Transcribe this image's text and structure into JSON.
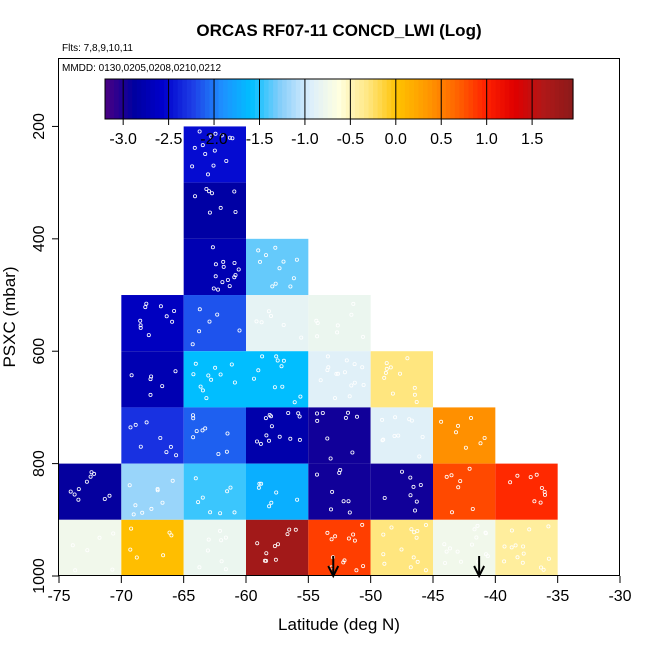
{
  "chart_data": {
    "type": "heatmap",
    "title": "ORCAS RF07-11 CONCD_LWI (Log)",
    "subtitle_flights": "Flts: 7,8,9,10,11",
    "subtitle_dates": "MMDD: 0130,0205,0208,0210,0212",
    "xlabel": "Latitude (deg N)",
    "ylabel": "PSXC (mbar)",
    "xlim": [
      -75,
      -30
    ],
    "ylim": [
      1000,
      80
    ],
    "x_ticks": [
      -75,
      -70,
      -65,
      -60,
      -55,
      -50,
      -45,
      -40,
      -35,
      -30
    ],
    "y_ticks": [
      200,
      400,
      600,
      800,
      1000
    ],
    "colorbar": {
      "range": [
        -3.2,
        1.95
      ],
      "ticks": [
        -3.0,
        -2.5,
        -2.0,
        -1.5,
        -1.0,
        -0.5,
        0.0,
        0.5,
        1.0,
        1.5
      ],
      "tick_labels": [
        "-3.0",
        "-2.5",
        "-2.0",
        "-1.5",
        "-1.0",
        "-0.5",
        "0.0",
        "0.5",
        "1.0",
        "1.5"
      ],
      "colors": [
        "#4b0082",
        "#0000a0",
        "#0000cd",
        "#1e3ee6",
        "#1e90ff",
        "#00bfff",
        "#87cefa",
        "#dbeefc",
        "#ffffe0",
        "#ffe680",
        "#ffc200",
        "#ff9900",
        "#ff6600",
        "#ff2200",
        "#e00000",
        "#b01818",
        "#8b1a1a"
      ]
    },
    "cells": [
      {
        "lat": [
          -75,
          -70
        ],
        "p": [
          800,
          900
        ],
        "value": -2.9
      },
      {
        "lat": [
          -75,
          -70
        ],
        "p": [
          900,
          1000
        ],
        "value": -0.75
      },
      {
        "lat": [
          -70,
          -65
        ],
        "p": [
          500,
          600
        ],
        "value": -2.65
      },
      {
        "lat": [
          -70,
          -65
        ],
        "p": [
          600,
          700
        ],
        "value": -2.75
      },
      {
        "lat": [
          -70,
          -65
        ],
        "p": [
          700,
          800
        ],
        "value": -2.3
      },
      {
        "lat": [
          -70,
          -65
        ],
        "p": [
          800,
          900
        ],
        "value": -1.2
      },
      {
        "lat": [
          -70,
          -65
        ],
        "p": [
          900,
          1000
        ],
        "value": 0.05
      },
      {
        "lat": [
          -65,
          -60
        ],
        "p": [
          200,
          300
        ],
        "value": -2.5
      },
      {
        "lat": [
          -65,
          -60
        ],
        "p": [
          300,
          400
        ],
        "value": -2.85
      },
      {
        "lat": [
          -65,
          -60
        ],
        "p": [
          400,
          500
        ],
        "value": -2.75
      },
      {
        "lat": [
          -65,
          -60
        ],
        "p": [
          500,
          600
        ],
        "value": -2.15
      },
      {
        "lat": [
          -65,
          -60
        ],
        "p": [
          600,
          700
        ],
        "value": -1.6
      },
      {
        "lat": [
          -65,
          -60
        ],
        "p": [
          700,
          800
        ],
        "value": -2.1
      },
      {
        "lat": [
          -65,
          -60
        ],
        "p": [
          800,
          900
        ],
        "value": -1.45
      },
      {
        "lat": [
          -65,
          -60
        ],
        "p": [
          900,
          1000
        ],
        "value": -0.8
      },
      {
        "lat": [
          -60,
          -55
        ],
        "p": [
          400,
          500
        ],
        "value": -1.35
      },
      {
        "lat": [
          -60,
          -55
        ],
        "p": [
          500,
          600
        ],
        "value": -0.85
      },
      {
        "lat": [
          -60,
          -55
        ],
        "p": [
          600,
          700
        ],
        "value": -1.6
      },
      {
        "lat": [
          -60,
          -55
        ],
        "p": [
          700,
          800
        ],
        "value": -2.8
      },
      {
        "lat": [
          -60,
          -55
        ],
        "p": [
          800,
          900
        ],
        "value": -1.7
      },
      {
        "lat": [
          -60,
          -55
        ],
        "p": [
          900,
          1000
        ],
        "value": 1.75
      },
      {
        "lat": [
          -55,
          -50
        ],
        "p": [
          500,
          600
        ],
        "value": -0.8
      },
      {
        "lat": [
          -55,
          -50
        ],
        "p": [
          600,
          700
        ],
        "value": -0.9
      },
      {
        "lat": [
          -55,
          -50
        ],
        "p": [
          700,
          800
        ],
        "value": -2.95
      },
      {
        "lat": [
          -55,
          -50
        ],
        "p": [
          800,
          900
        ],
        "value": -2.95
      },
      {
        "lat": [
          -55,
          -50
        ],
        "p": [
          900,
          1000
        ],
        "value": 0.85
      },
      {
        "lat": [
          -50,
          -45
        ],
        "p": [
          600,
          700
        ],
        "value": -0.3
      },
      {
        "lat": [
          -50,
          -45
        ],
        "p": [
          700,
          800
        ],
        "value": -0.9
      },
      {
        "lat": [
          -50,
          -45
        ],
        "p": [
          800,
          900
        ],
        "value": -2.95
      },
      {
        "lat": [
          -50,
          -45
        ],
        "p": [
          900,
          1000
        ],
        "value": -0.3
      },
      {
        "lat": [
          -45,
          -40
        ],
        "p": [
          700,
          800
        ],
        "value": 0.4
      },
      {
        "lat": [
          -45,
          -40
        ],
        "p": [
          800,
          900
        ],
        "value": 0.8
      },
      {
        "lat": [
          -45,
          -40
        ],
        "p": [
          900,
          1000
        ],
        "value": -0.75
      },
      {
        "lat": [
          -40,
          -35
        ],
        "p": [
          800,
          900
        ],
        "value": 0.95
      },
      {
        "lat": [
          -40,
          -35
        ],
        "p": [
          900,
          1000
        ],
        "value": -0.4
      }
    ],
    "arrows": [
      {
        "lat": -53
      },
      {
        "lat": -41.3
      }
    ],
    "grid": false,
    "legend_position": "top"
  }
}
